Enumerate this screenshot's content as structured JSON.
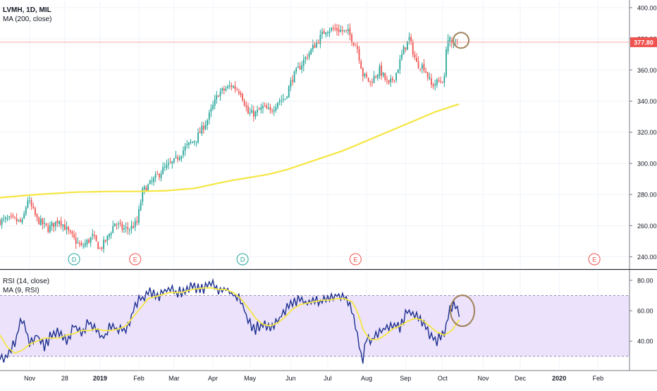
{
  "colors": {
    "bull": "#26a69a",
    "bear": "#ef5350",
    "ma": "#f5e642",
    "rsi": "#1c2f8f",
    "rsi_ma": "#f5e642",
    "rsi_band": "#ece2fb",
    "price_line": "#f4a7a3",
    "price_tag": "#ef5350",
    "annotation": "#a0825a",
    "event_d": "#26a69a",
    "event_e": "#ef5350",
    "axis_text": "#131722",
    "grid": "#f0f3fa"
  },
  "chart_data": [
    {
      "type": "candlestick",
      "title": "LVMH, 1D, MIL",
      "indicator": "MA (200, close)",
      "y_axis_ticks": [
        "400.00",
        "380.00",
        "360.00",
        "340.00",
        "320.00",
        "300.00",
        "280.00",
        "260.00",
        "240.00"
      ],
      "y_tick_values": [
        400,
        380,
        360,
        340,
        320,
        300,
        280,
        260,
        240
      ],
      "ylim": [
        233,
        404
      ],
      "last_price": 377.8,
      "last_price_label": "377.80",
      "bar_count": 240,
      "bar_range": [
        0,
        240
      ],
      "anchors": [
        [
          0,
          263
        ],
        [
          6,
          264
        ],
        [
          12,
          262
        ],
        [
          15,
          277
        ],
        [
          20,
          264
        ],
        [
          26,
          258
        ],
        [
          32,
          264
        ],
        [
          38,
          254
        ],
        [
          44,
          246
        ],
        [
          50,
          253
        ],
        [
          54,
          245
        ],
        [
          58,
          252
        ],
        [
          62,
          262
        ],
        [
          66,
          258
        ],
        [
          70,
          258
        ],
        [
          74,
          262
        ],
        [
          77,
          282
        ],
        [
          82,
          288
        ],
        [
          88,
          296
        ],
        [
          94,
          301
        ],
        [
          100,
          310
        ],
        [
          106,
          316
        ],
        [
          112,
          328
        ],
        [
          118,
          345
        ],
        [
          125,
          350
        ],
        [
          130,
          346
        ],
        [
          134,
          332
        ],
        [
          138,
          332
        ],
        [
          142,
          336
        ],
        [
          146,
          333
        ],
        [
          150,
          340
        ],
        [
          154,
          342
        ],
        [
          158,
          355
        ],
        [
          164,
          366
        ],
        [
          170,
          376
        ],
        [
          176,
          386
        ],
        [
          182,
          386
        ],
        [
          188,
          384
        ],
        [
          193,
          374
        ],
        [
          196,
          357
        ],
        [
          200,
          352
        ],
        [
          205,
          360
        ],
        [
          210,
          350
        ],
        [
          214,
          358
        ],
        [
          218,
          373
        ],
        [
          221,
          380
        ],
        [
          225,
          364
        ],
        [
          229,
          362
        ],
        [
          233,
          350
        ],
        [
          236,
          352
        ],
        [
          240,
          354
        ]
      ],
      "ma_series": [
        [
          0,
          278
        ],
        [
          20,
          280
        ],
        [
          40,
          281.5
        ],
        [
          60,
          282
        ],
        [
          75,
          282
        ],
        [
          90,
          282.5
        ],
        [
          105,
          284
        ],
        [
          115,
          286.5
        ],
        [
          125,
          289
        ],
        [
          135,
          291
        ],
        [
          145,
          293
        ],
        [
          155,
          296
        ],
        [
          165,
          300
        ],
        [
          175,
          304
        ],
        [
          185,
          308
        ],
        [
          195,
          313
        ],
        [
          205,
          318
        ],
        [
          215,
          323
        ],
        [
          225,
          328
        ],
        [
          235,
          333
        ],
        [
          245,
          337
        ],
        [
          248,
          338
        ]
      ],
      "extra_bars": [
        {
          "x": 241,
          "o": 356,
          "c": 373,
          "h": 375,
          "l": 355
        },
        {
          "x": 242,
          "o": 372,
          "c": 379,
          "h": 383,
          "l": 370
        },
        {
          "x": 243,
          "o": 378,
          "c": 381,
          "h": 382,
          "l": 375
        },
        {
          "x": 244,
          "o": 379,
          "c": 377,
          "h": 381,
          "l": 374
        },
        {
          "x": 245,
          "o": 377,
          "c": 378,
          "h": 380,
          "l": 374
        },
        {
          "x": 246,
          "o": 378,
          "c": 378.5,
          "h": 380,
          "l": 375
        },
        {
          "x": 247,
          "o": 378,
          "c": 377.8,
          "h": 380,
          "l": 376
        }
      ]
    },
    {
      "type": "line",
      "title": "RSI (14, close)",
      "indicator": "MA (9, RSI)",
      "y_axis_ticks": [
        "80.00",
        "60.00",
        "40.00"
      ],
      "y_tick_values": [
        80,
        60,
        40
      ],
      "ylim": [
        22,
        86
      ],
      "band": [
        30,
        70
      ],
      "anchors": [
        [
          0,
          28
        ],
        [
          4,
          31
        ],
        [
          8,
          40
        ],
        [
          12,
          55
        ],
        [
          16,
          38
        ],
        [
          20,
          44
        ],
        [
          24,
          36
        ],
        [
          28,
          45
        ],
        [
          32,
          46
        ],
        [
          36,
          40
        ],
        [
          40,
          50
        ],
        [
          44,
          44
        ],
        [
          48,
          54
        ],
        [
          52,
          46
        ],
        [
          56,
          42
        ],
        [
          60,
          50
        ],
        [
          64,
          46
        ],
        [
          68,
          48
        ],
        [
          72,
          60
        ],
        [
          76,
          68
        ],
        [
          80,
          72
        ],
        [
          86,
          70
        ],
        [
          92,
          74
        ],
        [
          98,
          72
        ],
        [
          104,
          76
        ],
        [
          110,
          74
        ],
        [
          114,
          78
        ],
        [
          118,
          72
        ],
        [
          122,
          76
        ],
        [
          126,
          70
        ],
        [
          130,
          68
        ],
        [
          134,
          52
        ],
        [
          138,
          48
        ],
        [
          142,
          52
        ],
        [
          146,
          50
        ],
        [
          150,
          54
        ],
        [
          154,
          60
        ],
        [
          158,
          66
        ],
        [
          162,
          68
        ],
        [
          166,
          64
        ],
        [
          170,
          68
        ],
        [
          174,
          66
        ],
        [
          178,
          68
        ],
        [
          182,
          70
        ],
        [
          186,
          68
        ],
        [
          190,
          60
        ],
        [
          192,
          50
        ],
        [
          194,
          38
        ],
        [
          196,
          27
        ],
        [
          198,
          42
        ],
        [
          200,
          40
        ],
        [
          204,
          46
        ],
        [
          208,
          48
        ],
        [
          212,
          52
        ],
        [
          216,
          48
        ],
        [
          220,
          60
        ],
        [
          224,
          58
        ],
        [
          228,
          52
        ],
        [
          232,
          44
        ],
        [
          236,
          40
        ],
        [
          240,
          46
        ],
        [
          243,
          62
        ],
        [
          246,
          65
        ],
        [
          248,
          59
        ]
      ],
      "ma_anchors": [
        [
          0,
          44
        ],
        [
          4,
          36
        ],
        [
          8,
          32
        ],
        [
          12,
          34
        ],
        [
          16,
          38
        ],
        [
          20,
          40
        ],
        [
          24,
          42
        ],
        [
          28,
          42
        ],
        [
          32,
          42
        ],
        [
          36,
          44
        ],
        [
          40,
          45
        ],
        [
          44,
          47
        ],
        [
          48,
          47
        ],
        [
          52,
          48
        ],
        [
          56,
          47
        ],
        [
          60,
          47
        ],
        [
          64,
          48
        ],
        [
          68,
          50
        ],
        [
          72,
          56
        ],
        [
          76,
          62
        ],
        [
          80,
          68
        ],
        [
          86,
          70
        ],
        [
          92,
          72
        ],
        [
          98,
          72
        ],
        [
          104,
          74
        ],
        [
          110,
          75
        ],
        [
          114,
          75
        ],
        [
          118,
          74
        ],
        [
          122,
          74
        ],
        [
          126,
          72
        ],
        [
          130,
          68
        ],
        [
          134,
          62
        ],
        [
          138,
          55
        ],
        [
          142,
          51
        ],
        [
          146,
          50
        ],
        [
          150,
          52
        ],
        [
          154,
          56
        ],
        [
          158,
          61
        ],
        [
          162,
          64
        ],
        [
          166,
          65
        ],
        [
          170,
          66
        ],
        [
          174,
          67
        ],
        [
          178,
          67
        ],
        [
          182,
          68
        ],
        [
          186,
          68
        ],
        [
          190,
          66
        ],
        [
          192,
          62
        ],
        [
          194,
          56
        ],
        [
          196,
          48
        ],
        [
          198,
          44
        ],
        [
          200,
          41
        ],
        [
          204,
          41
        ],
        [
          208,
          44
        ],
        [
          212,
          48
        ],
        [
          216,
          50
        ],
        [
          220,
          53
        ],
        [
          224,
          55
        ],
        [
          228,
          54
        ],
        [
          232,
          50
        ],
        [
          236,
          46
        ],
        [
          240,
          44
        ],
        [
          244,
          47
        ],
        [
          248,
          54
        ]
      ]
    }
  ],
  "events": [
    {
      "letter": "D",
      "bar": 40
    },
    {
      "letter": "E",
      "bar": 73
    },
    {
      "letter": "D",
      "bar": 131
    },
    {
      "letter": "E",
      "bar": 192
    },
    {
      "letter": "E",
      "bar": 321
    }
  ],
  "x_axis": {
    "bar_range": [
      0,
      340
    ],
    "labels": [
      {
        "text": "Nov",
        "bar": 16
      },
      {
        "text": "28",
        "bar": 35
      },
      {
        "text": "2019",
        "bar": 54
      },
      {
        "text": "Feb",
        "bar": 75
      },
      {
        "text": "Mar",
        "bar": 94
      },
      {
        "text": "Apr",
        "bar": 115
      },
      {
        "text": "May",
        "bar": 135
      },
      {
        "text": "Jun",
        "bar": 157
      },
      {
        "text": "Jul",
        "bar": 177
      },
      {
        "text": "Aug",
        "bar": 198
      },
      {
        "text": "Sep",
        "bar": 219
      },
      {
        "text": "Oct",
        "bar": 239
      },
      {
        "text": "Nov",
        "bar": 261
      },
      {
        "text": "Dec",
        "bar": 281
      },
      {
        "text": "2020",
        "bar": 302
      },
      {
        "text": "Feb",
        "bar": 323
      }
    ]
  },
  "annotations": [
    {
      "panel": "price",
      "bar": 249,
      "value": 379
    },
    {
      "panel": "rsi",
      "bar": 249,
      "value": 60
    }
  ]
}
